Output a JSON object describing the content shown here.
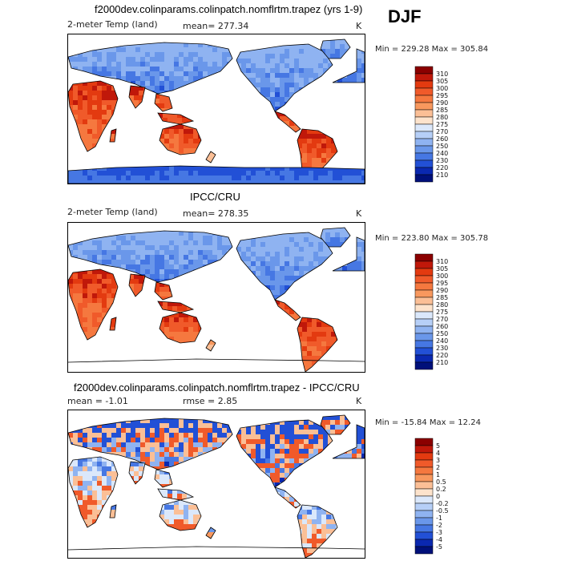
{
  "season": "DJF",
  "panels": [
    {
      "title": "f2000dev.colinparams.colinpatch.nomflrtm.trapez (yrs 1-9)",
      "variable": "2-meter Temp (land)",
      "mean_text": "mean= 277.34",
      "rmse_text": "",
      "units": "K",
      "minmax_text": "Min = 229.28 Max = 305.84"
    },
    {
      "title": "IPCC/CRU",
      "variable": "2-meter Temp (land)",
      "mean_text": "mean= 278.35",
      "rmse_text": "",
      "units": "K",
      "minmax_text": "Min = 223.80 Max = 305.78"
    },
    {
      "title": "f2000dev.colinparams.colinpatch.nomflrtm.trapez - IPCC/CRU",
      "variable": "",
      "mean_text": "mean =   -1.01",
      "rmse_text": "rmse =    2.85",
      "units": "K",
      "minmax_text": "Min = -15.84 Max =   12.24"
    }
  ],
  "chart_data": [
    {
      "type": "heatmap",
      "title": "f2000dev.colinparams.colinpatch.nomflrtm.trapez (yrs 1-9)",
      "subtitle": "2-meter Temp (land)",
      "units": "K",
      "mean": 277.34,
      "min": 229.28,
      "max": 305.84,
      "colorbar_levels": [
        "310",
        "305",
        "300",
        "295",
        "290",
        "285",
        "280",
        "275",
        "270",
        "260",
        "250",
        "240",
        "230",
        "220",
        "210"
      ],
      "colorbar_colors": [
        "#8b0000",
        "#c0180a",
        "#e33a10",
        "#f05a2a",
        "#f5783f",
        "#f8985e",
        "#fbbf96",
        "#fde3cc",
        "#dbe8fb",
        "#b6cff7",
        "#8fb3f1",
        "#6a97ea",
        "#4677e3",
        "#2250d6",
        "#0a28b0",
        "#00107a"
      ]
    },
    {
      "type": "heatmap",
      "title": "IPCC/CRU",
      "subtitle": "2-meter Temp (land)",
      "units": "K",
      "mean": 278.35,
      "min": 223.8,
      "max": 305.78,
      "colorbar_levels": [
        "310",
        "305",
        "300",
        "295",
        "290",
        "285",
        "280",
        "275",
        "270",
        "260",
        "250",
        "240",
        "230",
        "220",
        "210"
      ],
      "colorbar_colors": [
        "#8b0000",
        "#c0180a",
        "#e33a10",
        "#f05a2a",
        "#f5783f",
        "#f8985e",
        "#fbbf96",
        "#fde3cc",
        "#dbe8fb",
        "#b6cff7",
        "#8fb3f1",
        "#6a97ea",
        "#4677e3",
        "#2250d6",
        "#0a28b0",
        "#00107a"
      ]
    },
    {
      "type": "heatmap",
      "title": "f2000dev.colinparams.colinpatch.nomflrtm.trapez - IPCC/CRU",
      "units": "K",
      "mean": -1.01,
      "rmse": 2.85,
      "min": -15.84,
      "max": 12.24,
      "colorbar_levels": [
        "5",
        "4",
        "3",
        "2",
        "1",
        "0.5",
        "0.2",
        "0",
        "-0.2",
        "-0.5",
        "-1",
        "-2",
        "-3",
        "-4",
        "-5"
      ],
      "colorbar_colors": [
        "#8b0000",
        "#c0180a",
        "#e33a10",
        "#f05a2a",
        "#f5783f",
        "#f8985e",
        "#fbbf96",
        "#fde3cc",
        "#dbe8fb",
        "#b6cff7",
        "#8fb3f1",
        "#6a97ea",
        "#4677e3",
        "#2250d6",
        "#0a28b0",
        "#00107a"
      ]
    }
  ]
}
